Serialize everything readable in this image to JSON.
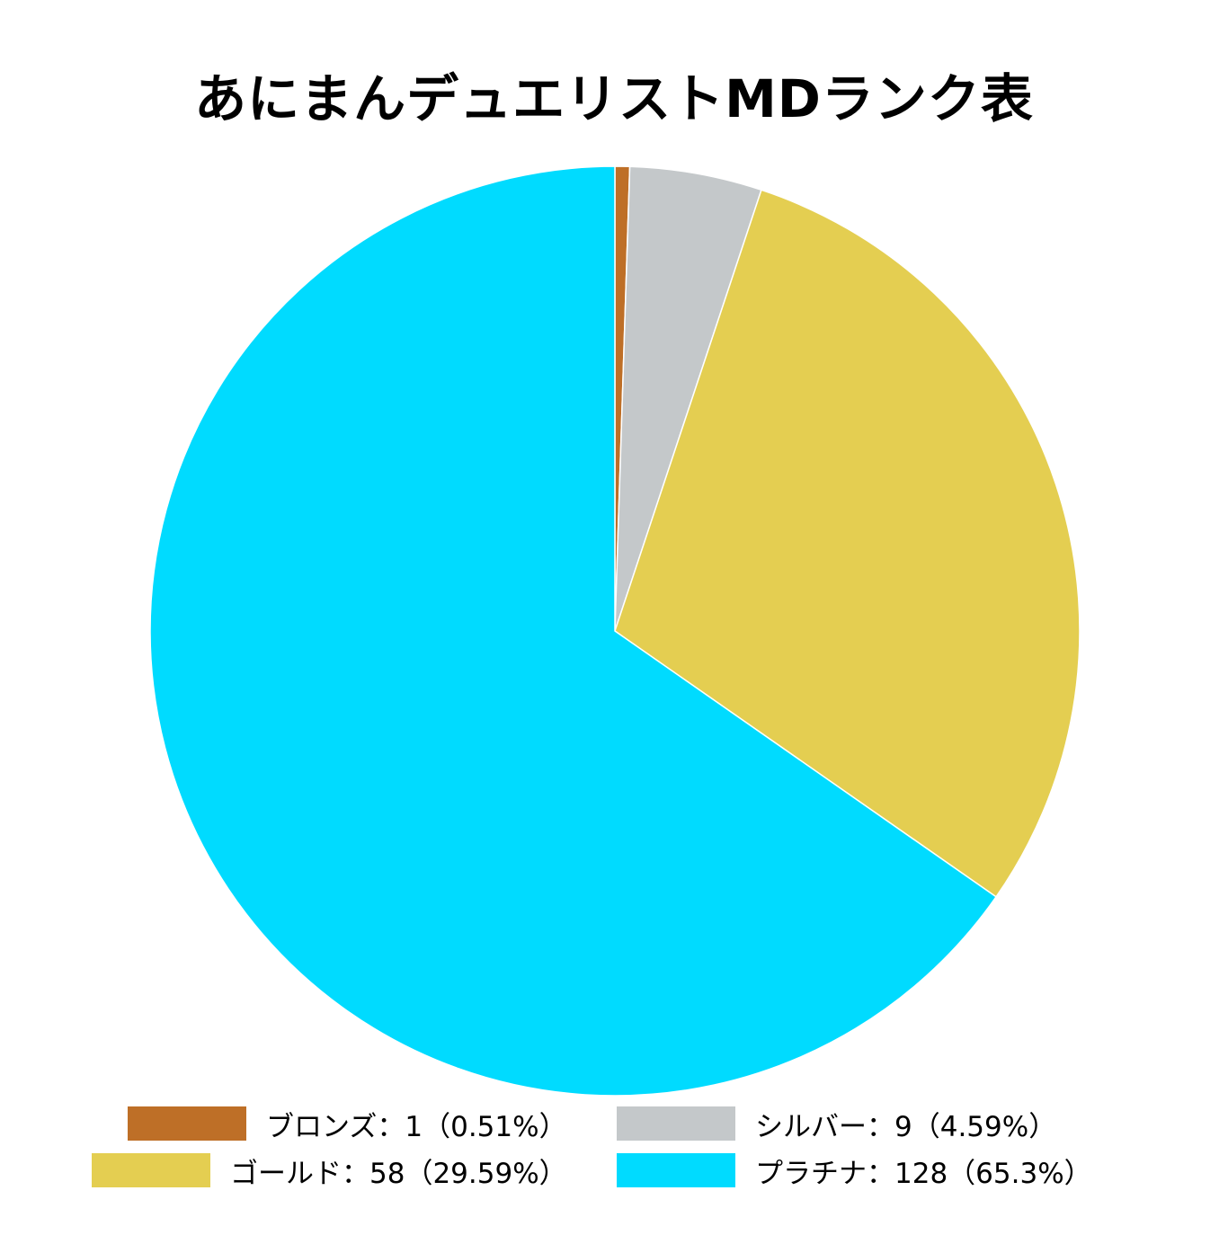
{
  "chart_data": {
    "type": "pie",
    "title": "あにまんデュエリストMDランク表",
    "slices": [
      {
        "name": "ブロンズ",
        "value": 1,
        "percent": "0.51%",
        "color": "#be6f27",
        "label": "ブロンズ：1（0.51%）"
      },
      {
        "name": "シルバー",
        "value": 9,
        "percent": "4.59%",
        "color": "#c4c8ca",
        "label": "シルバー：9（4.59%）"
      },
      {
        "name": "ゴールド",
        "value": 58,
        "percent": "29.59%",
        "color": "#e4ce51",
        "label": "ゴールド：58（29.59%）"
      },
      {
        "name": "プラチナ",
        "value": 128,
        "percent": "65.3%",
        "color": "#00dbff",
        "label": "プラチナ：128（65.3%）"
      }
    ],
    "start_angle": "12 o'clock",
    "direction": "clockwise",
    "legend": "bottom"
  }
}
